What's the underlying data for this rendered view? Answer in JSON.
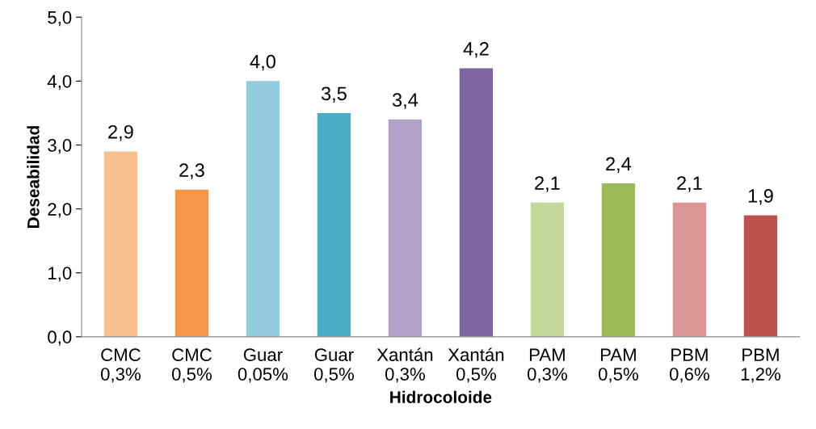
{
  "chart_data": {
    "type": "bar",
    "xlabel": "Hidrocoloide",
    "ylabel": "Deseabilidad",
    "categories": [
      "CMC\n0,3%",
      "CMC\n0,5%",
      "Guar\n0,05%",
      "Guar\n0,5%",
      "Xantán\n0,3%",
      "Xantán\n0,5%",
      "PAM\n0,3%",
      "PAM\n0,5%",
      "PBM\n0,6%",
      "PBM\n1,2%"
    ],
    "values": [
      2.9,
      2.3,
      4.0,
      3.5,
      3.4,
      4.2,
      2.1,
      2.4,
      2.1,
      1.9
    ],
    "colors": [
      "#f9c08f",
      "#f79646",
      "#93cddd",
      "#4bacc6",
      "#b2a1c7",
      "#8064a2",
      "#c4d79b",
      "#9bbb59",
      "#d99694",
      "#c0504d"
    ],
    "value_labels": [
      "2,9",
      "2,3",
      "4,0",
      "3,5",
      "3,4",
      "4,2",
      "2,1",
      "2,4",
      "2,1",
      "1,9"
    ],
    "ylim": [
      0,
      5
    ],
    "yticks": [
      {
        "value": 0,
        "label": "0,0"
      },
      {
        "value": 1,
        "label": "1,0"
      },
      {
        "value": 2,
        "label": "2,0"
      },
      {
        "value": 3,
        "label": "3,0"
      },
      {
        "value": 4,
        "label": "4,0"
      },
      {
        "value": 5,
        "label": "5,0"
      }
    ],
    "grid": false,
    "legend": false
  }
}
